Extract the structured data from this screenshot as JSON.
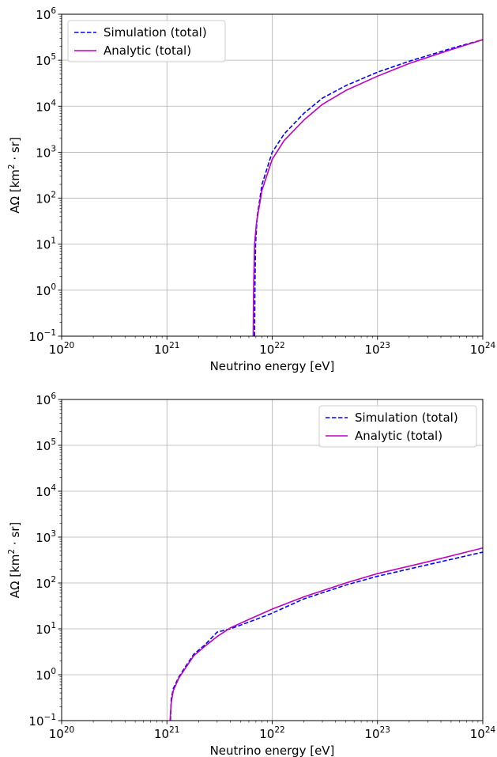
{
  "chart_data": [
    {
      "type": "line",
      "xlabel": "Neutrino energy [eV]",
      "ylabel_main": "AΩ [km",
      "ylabel_sup": "2",
      "ylabel_tail": " · sr]",
      "xscale": "log",
      "yscale": "log",
      "xlim": [
        1e+20,
        1e+24
      ],
      "ylim": [
        0.1,
        1000000
      ],
      "grid": true,
      "legend_position": "top-left",
      "x_tick_labels": [
        {
          "base": "10",
          "exp": "20",
          "value": 1e+20
        },
        {
          "base": "10",
          "exp": "21",
          "value": 1e+21
        },
        {
          "base": "10",
          "exp": "22",
          "value": 1e+22
        },
        {
          "base": "10",
          "exp": "23",
          "value": 1e+23
        },
        {
          "base": "10",
          "exp": "24",
          "value": 1e+24
        }
      ],
      "y_tick_labels": [
        {
          "base": "10",
          "exp": "−1",
          "value": 0.1
        },
        {
          "base": "10",
          "exp": "0",
          "value": 1
        },
        {
          "base": "10",
          "exp": "1",
          "value": 10
        },
        {
          "base": "10",
          "exp": "2",
          "value": 100
        },
        {
          "base": "10",
          "exp": "3",
          "value": 1000
        },
        {
          "base": "10",
          "exp": "4",
          "value": 10000
        },
        {
          "base": "10",
          "exp": "5",
          "value": 100000
        },
        {
          "base": "10",
          "exp": "6",
          "value": 1000000
        }
      ],
      "series": [
        {
          "name": "Simulation (total)",
          "color": "#0000ff",
          "style": "dashed",
          "x": [
            6.8e+21,
            6.85e+21,
            6.95e+21,
            7.2e+21,
            8e+21,
            1e+22,
            1.3e+22,
            2e+22,
            3e+22,
            5e+22,
            1e+23,
            2e+23,
            5e+23,
            1e+24
          ],
          "y": [
            0.1,
            1,
            10,
            40,
            200,
            1000,
            2500,
            7000,
            15000,
            28000,
            55000,
            95000,
            180000,
            280000
          ]
        },
        {
          "name": "Analytic (total)",
          "color": "#bf00bf",
          "style": "solid",
          "x": [
            6.6e+21,
            6.65e+21,
            6.8e+21,
            7.1e+21,
            8e+21,
            1e+22,
            1.3e+22,
            2e+22,
            3e+22,
            5e+22,
            1e+23,
            2e+23,
            5e+23,
            1e+24
          ],
          "y": [
            0.1,
            1,
            10,
            30,
            150,
            700,
            1800,
            5000,
            11000,
            22000,
            45000,
            85000,
            170000,
            280000
          ]
        }
      ]
    },
    {
      "type": "line",
      "xlabel": "Neutrino energy [eV]",
      "ylabel_main": "AΩ [km",
      "ylabel_sup": "2",
      "ylabel_tail": " · sr]",
      "xscale": "log",
      "yscale": "log",
      "xlim": [
        1e+20,
        1e+24
      ],
      "ylim": [
        0.1,
        1000000
      ],
      "grid": true,
      "legend_position": "top-right",
      "x_tick_labels": [
        {
          "base": "10",
          "exp": "20",
          "value": 1e+20
        },
        {
          "base": "10",
          "exp": "21",
          "value": 1e+21
        },
        {
          "base": "10",
          "exp": "22",
          "value": 1e+22
        },
        {
          "base": "10",
          "exp": "23",
          "value": 1e+23
        },
        {
          "base": "10",
          "exp": "24",
          "value": 1e+24
        }
      ],
      "y_tick_labels": [
        {
          "base": "10",
          "exp": "−1",
          "value": 0.1
        },
        {
          "base": "10",
          "exp": "0",
          "value": 1
        },
        {
          "base": "10",
          "exp": "1",
          "value": 10
        },
        {
          "base": "10",
          "exp": "2",
          "value": 100
        },
        {
          "base": "10",
          "exp": "3",
          "value": 1000
        },
        {
          "base": "10",
          "exp": "4",
          "value": 10000
        },
        {
          "base": "10",
          "exp": "5",
          "value": 100000
        },
        {
          "base": "10",
          "exp": "6",
          "value": 1000000
        }
      ],
      "series": [
        {
          "name": "Simulation (total)",
          "color": "#0000ff",
          "style": "dashed",
          "x": [
            1.08e+21,
            1.1e+21,
            1.15e+21,
            1.3e+21,
            1.5e+21,
            1.8e+21,
            2.3e+21,
            3e+21,
            4e+21,
            6e+21,
            1e+22,
            2e+22,
            5e+22,
            1e+23,
            3e+23,
            1e+24
          ],
          "y": [
            0.1,
            0.3,
            0.5,
            0.9,
            1.5,
            2.8,
            4.5,
            8.5,
            10,
            14,
            22,
            45,
            90,
            140,
            250,
            470
          ]
        },
        {
          "name": "Analytic (total)",
          "color": "#bf00bf",
          "style": "solid",
          "x": [
            1.07e+21,
            1.1e+21,
            1.15e+21,
            1.3e+21,
            1.5e+21,
            1.8e+21,
            2.3e+21,
            3e+21,
            4e+21,
            6e+21,
            1e+22,
            2e+22,
            5e+22,
            1e+23,
            3e+23,
            1e+24
          ],
          "y": [
            0.1,
            0.25,
            0.45,
            0.85,
            1.4,
            2.6,
            4.2,
            6.8,
            10.5,
            16,
            27,
            50,
            100,
            160,
            290,
            580
          ]
        }
      ]
    }
  ]
}
